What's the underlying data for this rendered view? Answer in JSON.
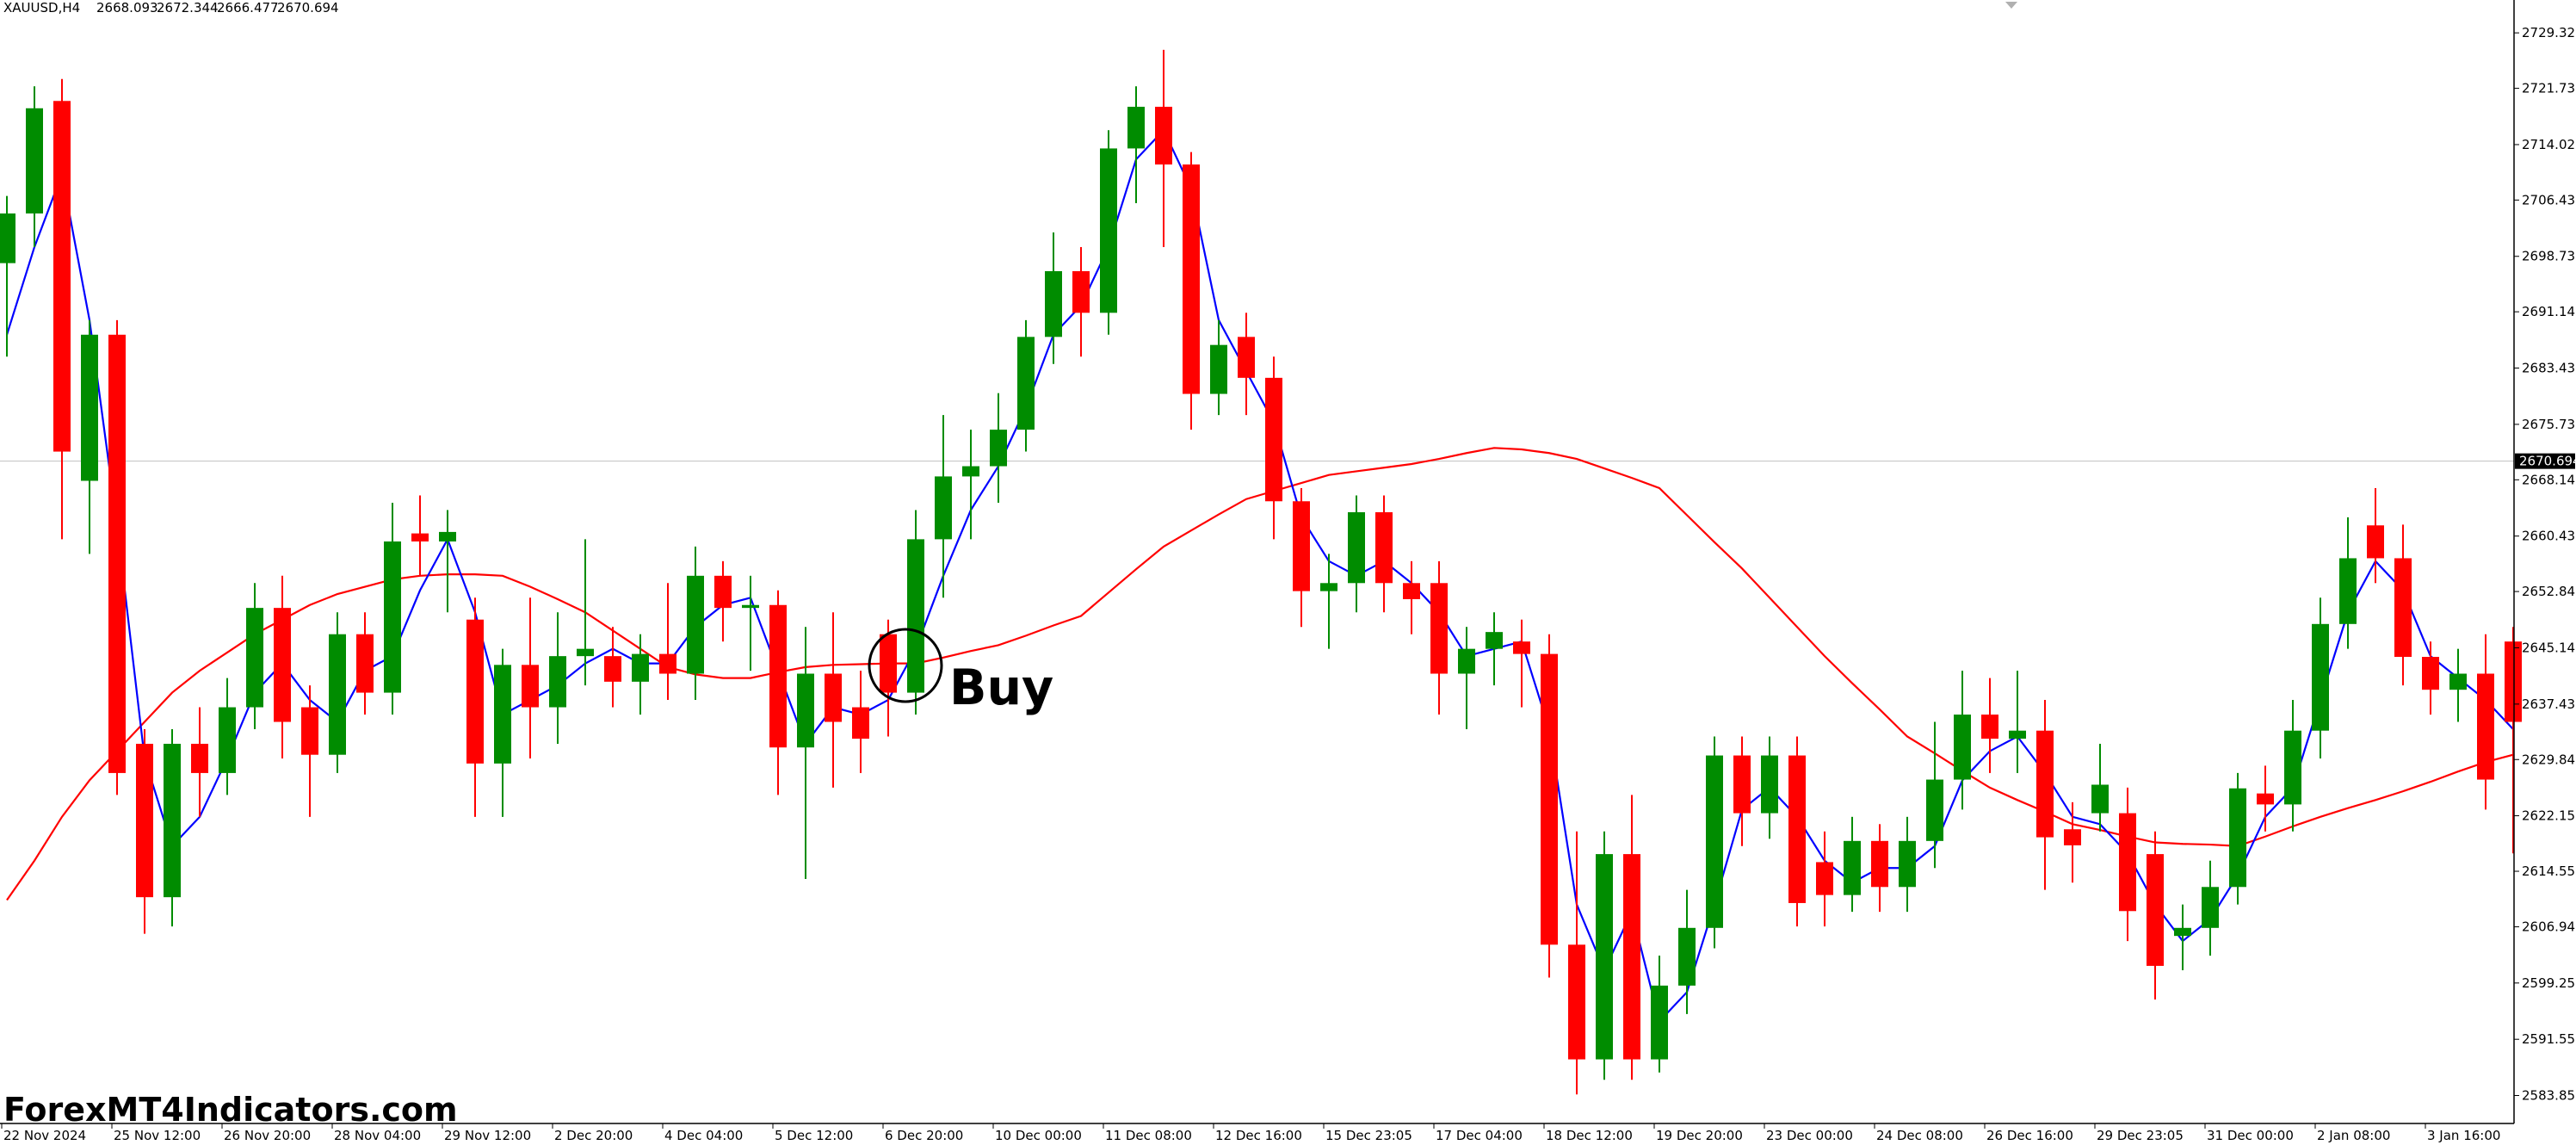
{
  "chart_data": {
    "type": "candlestick",
    "symbol": "XAUUSD,H4",
    "header_ohlc": [
      2668.093,
      2672.344,
      2666.477,
      2670.694
    ],
    "current_price": 2670.694,
    "annotation": "Buy",
    "watermark": "ForexMT4Indicators.com",
    "up_color": "#008c00",
    "down_color": "#ff0000",
    "ylim": [
      2580.26,
      2733.82
    ],
    "yticks": [
      2583.855,
      {
        "value": 2591.55,
        "label": "2591.550"
      },
      2599.255,
      2606.945,
      {
        "value": 2614.55,
        "label": "2614.550"
      },
      {
        "value": 2622.15,
        "label": "2622.150"
      },
      2629.845,
      2637.435,
      {
        "value": 2645.14,
        "label": "2645.140"
      },
      2652.845,
      2660.435,
      {
        "value": 2668.14,
        "label": "2668.140"
      },
      {
        "value": 2675.73,
        "label": "2675.730"
      },
      2683.435,
      {
        "value": 2691.14,
        "label": "2691.140"
      },
      {
        "value": 2698.73,
        "label": "2698.730"
      },
      2706.435,
      2714.025,
      {
        "value": 2721.73,
        "label": "2721.730"
      },
      2729.322
    ],
    "categories": [
      "22 Nov 2024",
      null,
      null,
      null,
      "25 Nov 12:00",
      null,
      null,
      null,
      "26 Nov 20:00",
      null,
      null,
      null,
      "28 Nov 04:00",
      null,
      null,
      null,
      "29 Nov 12:00",
      null,
      null,
      null,
      "2 Dec 20:00",
      null,
      null,
      null,
      "4 Dec 04:00",
      null,
      null,
      null,
      "5 Dec 12:00",
      null,
      null,
      null,
      "6 Dec 20:00",
      null,
      null,
      null,
      "10 Dec 00:00",
      null,
      null,
      null,
      "11 Dec 08:00",
      null,
      null,
      null,
      "12 Dec 16:00",
      null,
      null,
      null,
      "15 Dec 23:05",
      null,
      null,
      null,
      "17 Dec 04:00",
      null,
      null,
      null,
      "18 Dec 12:00",
      null,
      null,
      null,
      "19 Dec 20:00",
      null,
      null,
      null,
      "23 Dec 00:00",
      null,
      null,
      null,
      "24 Dec 08:00",
      null,
      null,
      null,
      "26 Dec 16:00",
      null,
      null,
      null,
      "29 Dec 23:05",
      null,
      null,
      null,
      "31 Dec 00:00",
      null,
      null,
      null,
      "2 Jan 08:00",
      null,
      null,
      null,
      "3 Jan 16:00",
      null,
      null,
      null
    ],
    "open": [
      2697.8,
      2704.6,
      2720,
      2668,
      2688,
      2632,
      2611,
      2632,
      2628,
      2637,
      2650.6,
      2637,
      2630.5,
      2647,
      2639,
      2660.8,
      2659.7,
      2649,
      2629.3,
      2642.8,
      2637,
      2644,
      2644,
      2640.5,
      2644.3,
      2641.6,
      2655,
      2650.6,
      2651,
      2631.5,
      2641.6,
      2637,
      2647,
      2639,
      2660,
      2668.6,
      2670,
      2675,
      2687.7,
      2696.7,
      2691,
      2713.5,
      2719.2,
      2711.3,
      2679.9,
      2687.7,
      2682.1,
      2665.2,
      2652.9,
      2654,
      2663.7,
      2654,
      2654,
      2641.6,
      2645,
      2646,
      2644.3,
      2604.5,
      2588.8,
      2616.9,
      2588.8,
      2598.9,
      2606.8,
      2630.4,
      2622.5,
      2630.4,
      2615.8,
      2611.3,
      2618.7,
      2612.4,
      2618.7,
      2627.1,
      2636,
      2632.7,
      2633.8,
      2620.3,
      2622.5,
      2622.5,
      2616.9,
      2605.7,
      2606.8,
      2612.4,
      2625.2,
      2623.7,
      2633.8,
      2648.4,
      2661.9,
      2657.4,
      2643.9,
      2639.4,
      2641.6,
      2646
    ],
    "high": [
      2707,
      2722,
      2723,
      2690,
      2690,
      2634,
      2634,
      2637,
      2641,
      2654,
      2655,
      2640,
      2650,
      2650,
      2665,
      2666,
      2664,
      2652,
      2645,
      2652,
      2650,
      2660,
      2648,
      2647,
      2654,
      2659,
      2657,
      2655,
      2653,
      2648,
      2650,
      2642,
      2649,
      2664,
      2677,
      2675,
      2680,
      2690,
      2702,
      2700,
      2716,
      2722,
      2727,
      2713,
      2690,
      2691,
      2685,
      2667,
      2658,
      2666,
      2666,
      2657,
      2657,
      2648,
      2650,
      2649,
      2647,
      2620,
      2620,
      2625,
      2603,
      2612,
      2633,
      2633,
      2633,
      2633,
      2620,
      2622,
      2621,
      2622,
      2635,
      2642,
      2641,
      2642,
      2638,
      2624,
      2632,
      2626,
      2620,
      2610,
      2616,
      2628,
      2629,
      2638,
      2652,
      2663,
      2667,
      2662,
      2646,
      2645,
      2647,
      2648
    ],
    "low": [
      2685,
      2700,
      2660,
      2658,
      2625,
      2606,
      2607,
      2622,
      2625,
      2634,
      2630,
      2622,
      2628,
      2636,
      2636,
      2655,
      2650,
      2622,
      2622,
      2630,
      2632,
      2640,
      2637,
      2636,
      2638,
      2638,
      2646,
      2642,
      2625,
      2613.5,
      2626,
      2628,
      2633,
      2636,
      2652,
      2660,
      2665,
      2672,
      2684,
      2685,
      2688,
      2706,
      2700,
      2675,
      2677,
      2677,
      2660,
      2648,
      2645,
      2650,
      2650,
      2647,
      2636,
      2634,
      2640,
      2637,
      2600,
      2584,
      2586,
      2586,
      2587,
      2595,
      2604,
      2618,
      2619,
      2607,
      2607,
      2609,
      2609,
      2609,
      2615,
      2623,
      2628,
      2628,
      2612,
      2613,
      2620,
      2605,
      2597,
      2601,
      2603,
      2610,
      2620,
      2620,
      2630,
      2645,
      2654,
      2640,
      2636,
      2635,
      2623,
      2617
    ],
    "close": [
      2704.6,
      2719,
      2672,
      2688,
      2628,
      2611,
      2632,
      2628,
      2637,
      2650.6,
      2635,
      2630.5,
      2647,
      2639,
      2659.7,
      2659.7,
      2661,
      2629.3,
      2642.8,
      2637,
      2644,
      2645,
      2640.5,
      2644.3,
      2641.6,
      2655,
      2650.6,
      2651,
      2631.5,
      2641.6,
      2635,
      2632.7,
      2639,
      2660,
      2668.6,
      2670,
      2675,
      2687.7,
      2696.7,
      2691,
      2713.5,
      2719.2,
      2711.3,
      2679.9,
      2686.6,
      2682.1,
      2665.2,
      2652.9,
      2654,
      2663.7,
      2654,
      2651.8,
      2641.6,
      2645,
      2647.3,
      2644.3,
      2604.5,
      2588.8,
      2616.9,
      2588.8,
      2598.9,
      2606.8,
      2630.4,
      2622.5,
      2630.4,
      2610.2,
      2611.3,
      2618.7,
      2612.4,
      2618.7,
      2627.1,
      2636,
      2632.7,
      2633.8,
      2619.2,
      2618.1,
      2626.4,
      2609.1,
      2601.6,
      2606.8,
      2612.4,
      2625.9,
      2623.7,
      2633.8,
      2648.4,
      2657.4,
      2657.4,
      2643.9,
      2639.4,
      2641.6,
      2627.1,
      2635
    ],
    "lines": [
      {
        "color": "#ff0000",
        "values": [
          2610.6,
          2616,
          2622,
          2627,
          2631,
          2635,
          2639,
          2642,
          2644.5,
          2647,
          2649,
          2651,
          2652.5,
          2653.5,
          2654.5,
          2655,
          2655.2,
          2655.2,
          2655,
          2653.5,
          2651.8,
          2650,
          2647.5,
          2645,
          2642.5,
          2641.5,
          2641,
          2641,
          2641.8,
          2642.5,
          2642.8,
          2642.9,
          2643,
          2643,
          2643.8,
          2644.7,
          2645.5,
          2646.8,
          2648.2,
          2649.5,
          2652.7,
          2655.9,
          2659,
          2661.2,
          2663.4,
          2665.5,
          2666.6,
          2667.7,
          2668.8,
          2669.3,
          2669.8,
          2670.3,
          2671,
          2671.8,
          2672.5,
          2672.3,
          2671.8,
          2671,
          2669.7,
          2668.4,
          2667,
          2663.3,
          2659.6,
          2656,
          2652,
          2648,
          2644,
          2640.3,
          2636.7,
          2633,
          2630.7,
          2628.3,
          2626,
          2624.3,
          2622.7,
          2621,
          2620.2,
          2619.3,
          2618.5,
          2618.3,
          2618.2,
          2618,
          2619.3,
          2620.7,
          2622,
          2623.2,
          2624.3,
          2625.5,
          2626.8,
          2628.2,
          2629.5,
          2630.5
        ]
      },
      {
        "color": "#0000ff",
        "values": [
          2688,
          2700,
          2710,
          2690,
          2662,
          2630,
          2618,
          2622,
          2630,
          2639,
          2643,
          2638,
          2635,
          2642,
          2644,
          2653,
          2660,
          2650,
          2636,
          2638,
          2640,
          2643,
          2645,
          2643,
          2643,
          2648,
          2651,
          2652,
          2642,
          2632,
          2637,
          2636,
          2638,
          2645,
          2655,
          2664,
          2670,
          2678,
          2688,
          2692,
          2700,
          2712,
          2716,
          2708,
          2690,
          2683,
          2676,
          2663,
          2657,
          2655,
          2657,
          2654,
          2650,
          2644,
          2645,
          2646,
          2634,
          2610,
          2601,
          2609,
          2594,
          2598,
          2610,
          2623,
          2626,
          2622,
          2616,
          2613,
          2615,
          2615,
          2618,
          2627,
          2631,
          2633,
          2628,
          2622,
          2621,
          2617,
          2610,
          2605,
          2608,
          2614,
          2622,
          2626,
          2638,
          2650,
          2657,
          2653,
          2644,
          2641,
          2638,
          2634
        ]
      }
    ]
  }
}
